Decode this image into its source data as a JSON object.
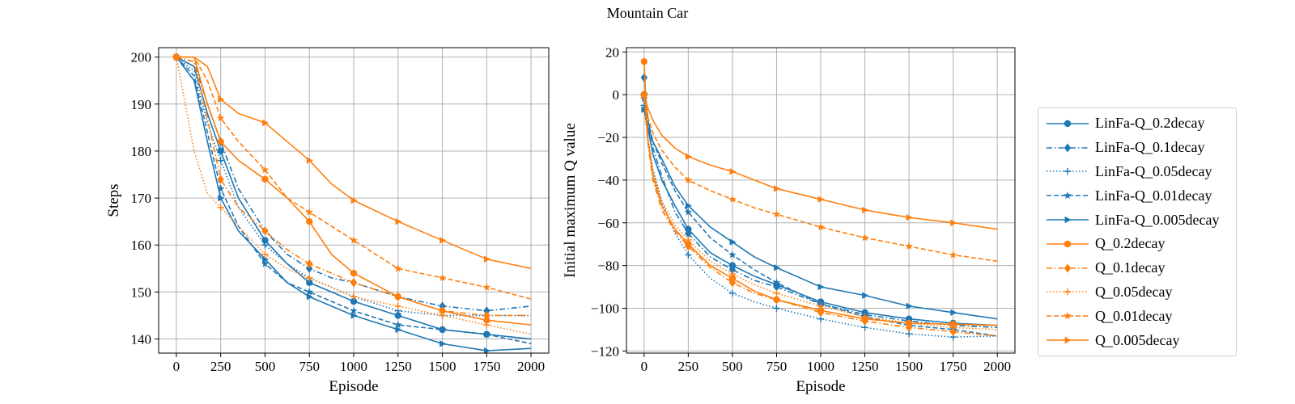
{
  "suptitle": "Mountain Car",
  "colors": {
    "blue": "#1f77b4",
    "orange": "#ff7f0e",
    "grid": "#b0b0b0"
  },
  "legend": {
    "placement": "right, outside",
    "entries": [
      {
        "name": "LinFa-Q_0.2decay",
        "color": "#1f77b4",
        "dash": "solid",
        "marker": "circle"
      },
      {
        "name": "LinFa-Q_0.1decay",
        "color": "#1f77b4",
        "dash": "dashdot",
        "marker": "diamond"
      },
      {
        "name": "LinFa-Q_0.05decay",
        "color": "#1f77b4",
        "dash": "dotted",
        "marker": "plus"
      },
      {
        "name": "LinFa-Q_0.01decay",
        "color": "#1f77b4",
        "dash": "dashed",
        "marker": "star"
      },
      {
        "name": "LinFa-Q_0.005decay",
        "color": "#1f77b4",
        "dash": "solid",
        "marker": "triangle-right"
      },
      {
        "name": "Q_0.2decay",
        "color": "#ff7f0e",
        "dash": "solid",
        "marker": "circle"
      },
      {
        "name": "Q_0.1decay",
        "color": "#ff7f0e",
        "dash": "dashdot",
        "marker": "diamond"
      },
      {
        "name": "Q_0.05decay",
        "color": "#ff7f0e",
        "dash": "dotted",
        "marker": "plus"
      },
      {
        "name": "Q_0.01decay",
        "color": "#ff7f0e",
        "dash": "dashed",
        "marker": "star"
      },
      {
        "name": "Q_0.005decay",
        "color": "#ff7f0e",
        "dash": "solid",
        "marker": "triangle-right"
      }
    ]
  },
  "chart_data": [
    {
      "type": "line",
      "title": "",
      "xlabel": "Episode",
      "ylabel": "Steps",
      "xlim": [
        -100,
        2100
      ],
      "ylim": [
        137,
        202
      ],
      "xticks": [
        0,
        250,
        500,
        750,
        1000,
        1250,
        1500,
        1750,
        2000
      ],
      "yticks": [
        140,
        150,
        160,
        170,
        180,
        190,
        200
      ],
      "grid": true,
      "marker_x": [
        0,
        250,
        500,
        750,
        1000,
        1250,
        1500,
        1750
      ],
      "series": [
        {
          "name": "LinFa-Q_0.2decay",
          "x": [
            0,
            100,
            175,
            250,
            350,
            500,
            625,
            750,
            875,
            1000,
            1250,
            1500,
            1750,
            2000
          ],
          "y": [
            200,
            198,
            188,
            180,
            170,
            161,
            156,
            152,
            150,
            148,
            145,
            142,
            141,
            140
          ]
        },
        {
          "name": "LinFa-Q_0.1decay",
          "x": [
            0,
            100,
            175,
            250,
            350,
            500,
            625,
            750,
            875,
            1000,
            1250,
            1500,
            1750,
            2000
          ],
          "y": [
            200,
            199,
            190,
            182,
            172,
            163,
            158,
            155,
            153,
            152,
            149,
            147,
            146,
            147
          ]
        },
        {
          "name": "LinFa-Q_0.05decay",
          "x": [
            0,
            100,
            175,
            250,
            350,
            500,
            625,
            750,
            875,
            1000,
            1250,
            1500,
            1750,
            2000
          ],
          "y": [
            200,
            197,
            186,
            178,
            168,
            160,
            156,
            153,
            151,
            149,
            146,
            145,
            145,
            145
          ]
        },
        {
          "name": "LinFa-Q_0.01decay",
          "x": [
            0,
            100,
            175,
            250,
            350,
            500,
            625,
            750,
            875,
            1000,
            1250,
            1500,
            1750,
            2000
          ],
          "y": [
            200,
            196,
            184,
            172,
            164,
            156,
            152,
            150,
            148,
            146,
            143,
            142,
            141,
            139
          ]
        },
        {
          "name": "LinFa-Q_0.005decay",
          "x": [
            0,
            100,
            175,
            250,
            350,
            500,
            625,
            750,
            875,
            1000,
            1250,
            1500,
            1750,
            2000
          ],
          "y": [
            200,
            195,
            182,
            170,
            163,
            157,
            152,
            149,
            147,
            145,
            142,
            139,
            137.5,
            138
          ]
        },
        {
          "name": "Q_0.2decay",
          "x": [
            0,
            100,
            175,
            250,
            350,
            500,
            625,
            750,
            875,
            1000,
            1250,
            1500,
            1750,
            2000
          ],
          "y": [
            200,
            200,
            190,
            182,
            178,
            174,
            170,
            165,
            158,
            154,
            149,
            146,
            144,
            143
          ]
        },
        {
          "name": "Q_0.1decay",
          "x": [
            0,
            100,
            175,
            250,
            350,
            500,
            625,
            750,
            875,
            1000,
            1250,
            1500,
            1750,
            2000
          ],
          "y": [
            200,
            199,
            187,
            174,
            168,
            163,
            159,
            156,
            154,
            152,
            149,
            146,
            145,
            145
          ]
        },
        {
          "name": "Q_0.05decay",
          "x": [
            0,
            100,
            175,
            250,
            350,
            500,
            625,
            750,
            875,
            1000,
            1250,
            1500,
            1750,
            2000
          ],
          "y": [
            200,
            180,
            171,
            168,
            164,
            158,
            155,
            153,
            151,
            149,
            147,
            145,
            143,
            141
          ]
        },
        {
          "name": "Q_0.01decay",
          "x": [
            0,
            100,
            175,
            250,
            350,
            500,
            625,
            750,
            875,
            1000,
            1250,
            1500,
            1750,
            2000
          ],
          "y": [
            200,
            200,
            195,
            187,
            182,
            176,
            170,
            167,
            164,
            161,
            155,
            153,
            151,
            148.5
          ]
        },
        {
          "name": "Q_0.005decay",
          "x": [
            0,
            100,
            175,
            250,
            350,
            500,
            625,
            750,
            875,
            1000,
            1250,
            1500,
            1750,
            2000
          ],
          "y": [
            200,
            200,
            198,
            191,
            188,
            186,
            182,
            178,
            173,
            169.5,
            165,
            161,
            157,
            155
          ]
        }
      ]
    },
    {
      "type": "line",
      "title": "",
      "xlabel": "Episode",
      "ylabel": "Initial maximum Q value",
      "xlim": [
        -100,
        2100
      ],
      "ylim": [
        -121,
        22
      ],
      "xticks": [
        0,
        250,
        500,
        750,
        1000,
        1250,
        1500,
        1750,
        2000
      ],
      "yticks": [
        -120,
        -100,
        -80,
        -60,
        -40,
        -20,
        0,
        20
      ],
      "grid": true,
      "marker_x": [
        0,
        250,
        500,
        750,
        1000,
        1250,
        1500,
        1750
      ],
      "series": [
        {
          "name": "LinFa-Q_0.2decay",
          "x": [
            0,
            20,
            50,
            100,
            175,
            250,
            375,
            500,
            625,
            750,
            1000,
            1250,
            1500,
            1750,
            2000
          ],
          "y": [
            0,
            -15,
            -28,
            -40,
            -52,
            -63,
            -74,
            -80,
            -85,
            -89,
            -97,
            -102,
            -105,
            -107,
            -108
          ]
        },
        {
          "name": "LinFa-Q_0.1decay",
          "x": [
            0,
            20,
            50,
            100,
            175,
            250,
            375,
            500,
            625,
            750,
            1000,
            1250,
            1500,
            1750,
            2000
          ],
          "y": [
            8,
            -10,
            -25,
            -38,
            -55,
            -65,
            -76,
            -82,
            -87,
            -90,
            -98,
            -103,
            -106,
            -108,
            -109
          ]
        },
        {
          "name": "LinFa-Q_0.05decay",
          "x": [
            0,
            20,
            50,
            100,
            175,
            250,
            375,
            500,
            625,
            750,
            1000,
            1250,
            1500,
            1750,
            2000
          ],
          "y": [
            -5,
            -20,
            -35,
            -50,
            -65,
            -75,
            -86,
            -93,
            -97,
            -100,
            -105,
            -109,
            -112,
            -113.5,
            -113
          ]
        },
        {
          "name": "LinFa-Q_0.01decay",
          "x": [
            0,
            20,
            50,
            100,
            175,
            250,
            375,
            500,
            625,
            750,
            1000,
            1250,
            1500,
            1750,
            2000
          ],
          "y": [
            -2,
            -12,
            -22,
            -32,
            -45,
            -55,
            -67,
            -75,
            -82,
            -88,
            -98,
            -104,
            -108,
            -110,
            -113
          ]
        },
        {
          "name": "LinFa-Q_0.005decay",
          "x": [
            0,
            20,
            50,
            100,
            175,
            250,
            375,
            500,
            625,
            750,
            1000,
            1250,
            1500,
            1750,
            2000
          ],
          "y": [
            -7,
            -15,
            -22,
            -30,
            -43,
            -52,
            -62,
            -69,
            -76,
            -81,
            -90,
            -94,
            -99,
            -102,
            -105
          ]
        },
        {
          "name": "Q_0.2decay",
          "x": [
            0,
            20,
            50,
            100,
            175,
            250,
            375,
            500,
            625,
            750,
            1000,
            1250,
            1500,
            1750,
            2000
          ],
          "y": [
            15.5,
            -20,
            -38,
            -52,
            -63,
            -70,
            -80,
            -86,
            -92,
            -96,
            -101,
            -105,
            -107,
            -107.5,
            -108
          ]
        },
        {
          "name": "Q_0.1decay",
          "x": [
            0,
            20,
            50,
            100,
            175,
            250,
            375,
            500,
            625,
            750,
            1000,
            1250,
            1500,
            1750,
            2000
          ],
          "y": [
            -0.5,
            -22,
            -40,
            -54,
            -64,
            -71,
            -81,
            -88,
            -93,
            -96,
            -102,
            -106,
            -109,
            -111,
            -113
          ]
        },
        {
          "name": "Q_0.05decay",
          "x": [
            0,
            20,
            50,
            100,
            175,
            250,
            375,
            500,
            625,
            750,
            1000,
            1250,
            1500,
            1750,
            2000
          ],
          "y": [
            0,
            -20,
            -36,
            -50,
            -61,
            -68,
            -78,
            -84,
            -89,
            -93,
            -99,
            -104,
            -107,
            -109,
            -110
          ]
        },
        {
          "name": "Q_0.01decay",
          "x": [
            0,
            20,
            50,
            100,
            175,
            250,
            375,
            500,
            625,
            750,
            1000,
            1250,
            1500,
            1750,
            2000
          ],
          "y": [
            0,
            -10,
            -18,
            -26,
            -34,
            -40,
            -45,
            -49,
            -53,
            -56,
            -62,
            -67,
            -71,
            -75,
            -78
          ]
        },
        {
          "name": "Q_0.005decay",
          "x": [
            0,
            20,
            50,
            100,
            175,
            250,
            375,
            500,
            625,
            750,
            1000,
            1250,
            1500,
            1750,
            2000
          ],
          "y": [
            0,
            -6,
            -12,
            -19,
            -25,
            -29,
            -33,
            -36,
            -40,
            -44,
            -49,
            -54,
            -57.5,
            -60,
            -63
          ]
        }
      ]
    }
  ]
}
